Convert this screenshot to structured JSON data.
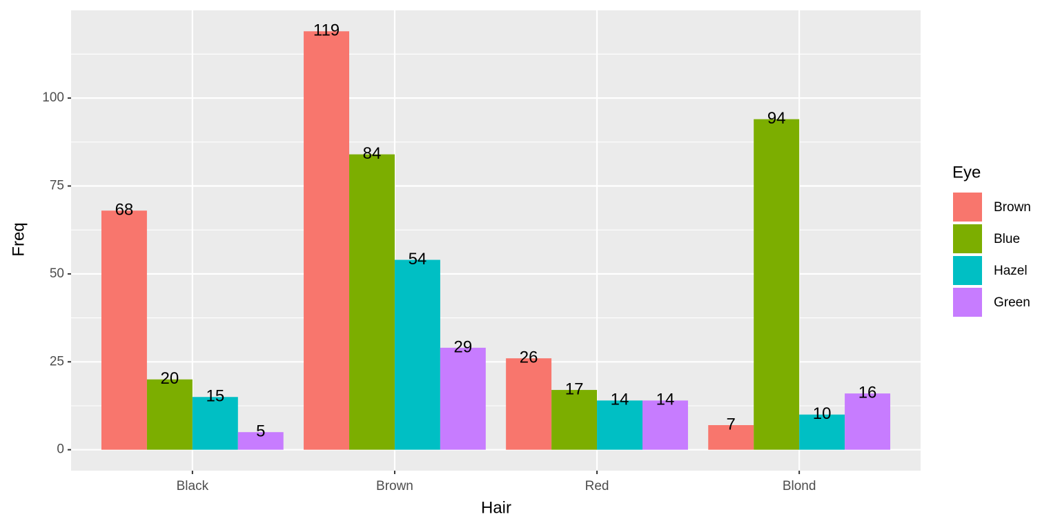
{
  "chart_data": {
    "type": "bar",
    "categories": [
      "Black",
      "Brown",
      "Red",
      "Blond"
    ],
    "series": [
      {
        "name": "Brown",
        "color": "#f8766d",
        "values": [
          68,
          119,
          26,
          7
        ]
      },
      {
        "name": "Blue",
        "color": "#7cae00",
        "values": [
          20,
          84,
          17,
          94
        ]
      },
      {
        "name": "Hazel",
        "color": "#00bfc4",
        "values": [
          15,
          54,
          14,
          10
        ]
      },
      {
        "name": "Green",
        "color": "#c77cff",
        "values": [
          5,
          29,
          14,
          16
        ]
      }
    ],
    "x_label": "Hair",
    "y_label": "Freq",
    "legend_title": "Eye",
    "ylim": [
      -5.95,
      124.95
    ],
    "yticks": [
      0,
      25,
      50,
      75,
      100
    ],
    "grid": true,
    "legend_position": "right"
  }
}
